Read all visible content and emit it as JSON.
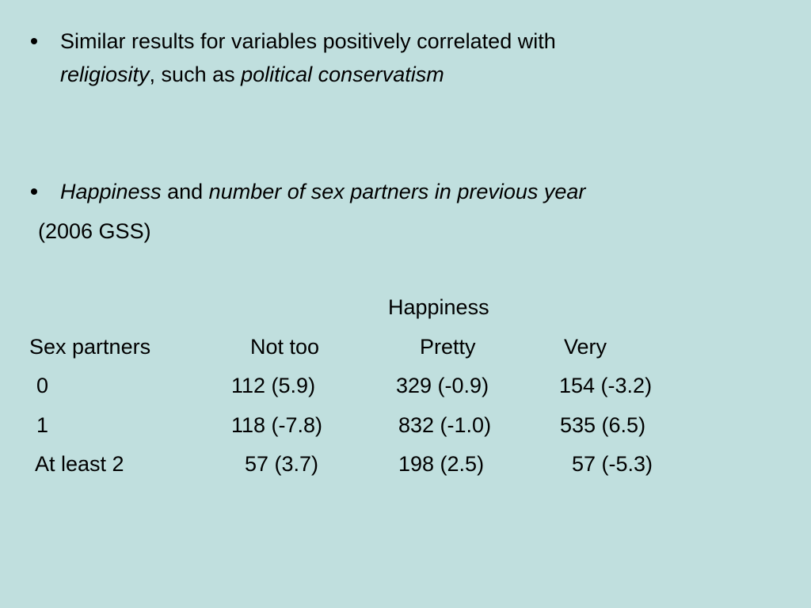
{
  "bullets": [
    {
      "line1": "Similar results for variables positively correlated with",
      "term1": "religiosity",
      "joiner": ", such as",
      "term2": "political conservatism"
    },
    {
      "term1": "Happiness",
      "joiner": "and",
      "term2": "number of sex partners in previous year",
      "source": "(2006 GSS)"
    }
  ],
  "table": {
    "caption": "Happiness",
    "header": [
      "Sex partners",
      "Not too",
      "Pretty",
      "Very"
    ],
    "rows": [
      [
        "0",
        "112 (5.9)",
        "329 (-0.9)",
        "154 (-3.2)"
      ],
      [
        "1",
        "118 (-7.8)",
        "832 (-1.0)",
        "535 (6.5)"
      ],
      [
        "At least 2",
        "57 (3.7)",
        "198 (2.5)",
        "57 (-5.3)"
      ]
    ]
  }
}
